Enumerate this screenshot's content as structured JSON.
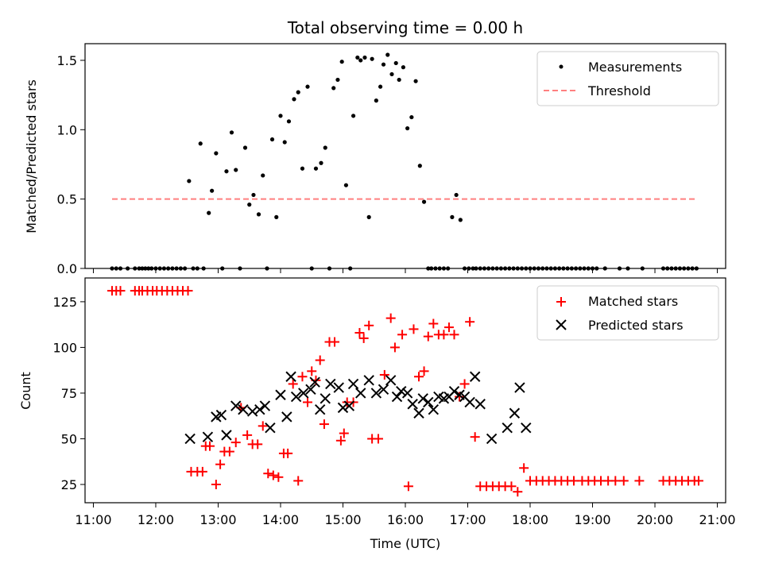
{
  "chart_data": [
    {
      "type": "scatter",
      "title": "Total observing time = 0.00 h",
      "xlabel": "",
      "ylabel": "Matched/Predicted stars",
      "xlim": [
        "11:00",
        "21:00"
      ],
      "ylim": [
        0,
        1.62
      ],
      "yticks": [
        0.0,
        0.5,
        1.0,
        1.5
      ],
      "ytick_labels": [
        "0.0",
        "0.5",
        "1.0",
        "1.5"
      ],
      "legend_position": "top-right",
      "series": [
        {
          "name": "Measurements",
          "color": "#000000",
          "x": [
            "11:18",
            "11:22",
            "11:26",
            "11:33",
            "11:40",
            "11:44",
            "11:47",
            "11:50",
            "11:53",
            "11:56",
            "12:00",
            "12:04",
            "12:08",
            "12:12",
            "12:16",
            "12:20",
            "12:24",
            "12:28",
            "12:32",
            "12:36",
            "12:40",
            "12:43",
            "12:46",
            "12:51",
            "12:54",
            "12:58",
            "13:04",
            "13:08",
            "13:13",
            "13:17",
            "13:21",
            "13:26",
            "13:30",
            "13:34",
            "13:39",
            "13:43",
            "13:47",
            "13:52",
            "13:56",
            "14:00",
            "14:04",
            "14:08",
            "14:13",
            "14:17",
            "14:21",
            "14:26",
            "14:30",
            "14:34",
            "14:39",
            "14:43",
            "14:47",
            "14:51",
            "14:55",
            "14:59",
            "15:03",
            "15:07",
            "15:10",
            "15:14",
            "15:17",
            "15:21",
            "15:25",
            "15:28",
            "15:32",
            "15:36",
            "15:39",
            "15:43",
            "15:47",
            "15:51",
            "15:54",
            "15:58",
            "16:02",
            "16:06",
            "16:10",
            "16:14",
            "16:18",
            "16:22",
            "16:25",
            "16:29",
            "16:33",
            "16:37",
            "16:41",
            "16:45",
            "16:49",
            "16:53",
            "16:57",
            "17:01",
            "17:05",
            "17:08",
            "17:12",
            "17:16",
            "17:20",
            "17:24",
            "17:28",
            "17:32",
            "17:36",
            "17:40",
            "17:44",
            "17:48",
            "17:52",
            "17:56",
            "18:00",
            "18:04",
            "18:08",
            "18:12",
            "18:16",
            "18:20",
            "18:24",
            "18:28",
            "18:32",
            "18:36",
            "18:40",
            "18:44",
            "18:48",
            "18:52",
            "18:56",
            "19:00",
            "19:04",
            "19:12",
            "19:26",
            "19:34",
            "19:48",
            "20:08",
            "20:12",
            "20:16",
            "20:20",
            "20:24",
            "20:28",
            "20:32",
            "20:36",
            "20:40"
          ],
          "y": [
            0.0,
            0.0,
            0.0,
            0.0,
            0.0,
            0.0,
            0.0,
            0.0,
            0.0,
            0.0,
            0.0,
            0.0,
            0.0,
            0.0,
            0.0,
            0.0,
            0.0,
            0.0,
            0.63,
            0.0,
            0.0,
            0.9,
            0.0,
            0.4,
            0.56,
            0.83,
            0.0,
            0.7,
            0.98,
            0.71,
            0.0,
            0.87,
            0.46,
            0.53,
            0.39,
            0.67,
            0.0,
            0.93,
            0.37,
            1.1,
            0.91,
            1.06,
            1.22,
            1.27,
            0.72,
            1.31,
            0.0,
            0.72,
            0.76,
            0.87,
            0.0,
            1.3,
            1.36,
            1.49,
            0.6,
            0.0,
            1.1,
            1.52,
            1.5,
            1.52,
            0.37,
            1.51,
            1.21,
            1.31,
            1.47,
            1.54,
            1.4,
            1.48,
            1.36,
            1.45,
            1.01,
            1.09,
            1.35,
            0.74,
            0.48,
            0.0,
            0.0,
            0.0,
            0.0,
            0.0,
            0.0,
            0.37,
            0.53,
            0.35,
            0.0,
            0.0,
            0.0,
            0.0,
            0.0,
            0.0,
            0.0,
            0.0,
            0.0,
            0.0,
            0.0,
            0.0,
            0.0,
            0.0,
            0.0,
            0.0,
            0.0,
            0.0,
            0.0,
            0.0,
            0.0,
            0.0,
            0.0,
            0.0,
            0.0,
            0.0,
            0.0,
            0.0,
            0.0,
            0.0,
            0.0,
            0.0,
            0.0,
            0.0,
            0.0,
            0.0,
            0.0,
            0.0,
            0.0,
            0.0,
            0.0,
            0.0,
            0.0,
            0.0,
            0.0,
            0.0
          ]
        },
        {
          "name": "Threshold",
          "color": "#ff7f7f",
          "x": [
            "11:18",
            "20:40"
          ],
          "y": [
            0.5,
            0.5
          ]
        }
      ]
    },
    {
      "type": "scatter",
      "title": "",
      "xlabel": "Time (UTC)",
      "ylabel": "Count",
      "xlim": [
        "11:00",
        "21:00"
      ],
      "ylim": [
        15,
        138
      ],
      "yticks": [
        25,
        50,
        75,
        100,
        125
      ],
      "ytick_labels": [
        "25",
        "50",
        "75",
        "100",
        "125"
      ],
      "xticks": [
        "11:00",
        "12:00",
        "13:00",
        "14:00",
        "15:00",
        "16:00",
        "17:00",
        "18:00",
        "19:00",
        "20:00",
        "21:00"
      ],
      "legend_position": "top-right",
      "series": [
        {
          "name": "Matched stars",
          "color": "#ff0000",
          "x": [
            "11:18",
            "11:22",
            "11:26",
            "11:40",
            "11:44",
            "11:47",
            "11:52",
            "11:57",
            "12:01",
            "12:06",
            "12:11",
            "12:16",
            "12:21",
            "12:26",
            "12:31",
            "12:34",
            "12:40",
            "12:45",
            "12:48",
            "12:52",
            "12:58",
            "13:02",
            "13:06",
            "13:11",
            "13:17",
            "13:22",
            "13:28",
            "13:33",
            "13:38",
            "13:43",
            "13:48",
            "13:53",
            "13:58",
            "14:03",
            "14:07",
            "14:12",
            "14:17",
            "14:21",
            "14:26",
            "14:30",
            "14:34",
            "14:38",
            "14:42",
            "14:47",
            "14:52",
            "14:58",
            "15:01",
            "15:04",
            "15:10",
            "15:16",
            "15:20",
            "15:25",
            "15:28",
            "15:34",
            "15:40",
            "15:46",
            "15:50",
            "15:57",
            "16:03",
            "16:08",
            "16:13",
            "16:18",
            "16:22",
            "16:27",
            "16:32",
            "16:37",
            "16:42",
            "16:47",
            "16:52",
            "16:57",
            "17:02",
            "17:07",
            "17:12",
            "17:18",
            "17:24",
            "17:30",
            "17:36",
            "17:42",
            "17:48",
            "17:54",
            "18:00",
            "18:06",
            "18:12",
            "18:18",
            "18:24",
            "18:30",
            "18:36",
            "18:42",
            "18:50",
            "18:56",
            "19:02",
            "19:08",
            "19:15",
            "19:22",
            "19:30",
            "19:45",
            "20:08",
            "20:14",
            "20:20",
            "20:26",
            "20:32",
            "20:38",
            "20:42"
          ],
          "y": [
            131,
            131,
            131,
            131,
            131,
            131,
            131,
            131,
            131,
            131,
            131,
            131,
            131,
            131,
            131,
            32,
            32,
            32,
            46,
            46,
            25,
            36,
            43,
            43,
            48,
            67,
            52,
            47,
            47,
            57,
            31,
            30,
            29,
            42,
            42,
            80,
            27,
            84,
            70,
            87,
            82,
            93,
            58,
            103,
            103,
            49,
            53,
            70,
            70,
            108,
            105,
            112,
            50,
            50,
            85,
            116,
            100,
            107,
            24,
            110,
            84,
            87,
            106,
            113,
            107,
            107,
            111,
            107,
            73,
            80,
            114,
            51,
            24,
            24,
            24,
            24,
            24,
            24,
            21,
            34,
            27,
            27,
            27,
            27,
            27,
            27,
            27,
            27,
            27,
            27,
            27,
            27,
            27,
            27,
            27,
            27,
            27,
            27,
            27,
            27,
            27,
            27,
            27
          ]
        },
        {
          "name": "Predicted stars",
          "color": "#000000",
          "x": [
            "12:33",
            "12:50",
            "12:58",
            "13:03",
            "13:08",
            "13:17",
            "13:24",
            "13:33",
            "13:40",
            "13:45",
            "13:50",
            "14:00",
            "14:06",
            "14:10",
            "14:15",
            "14:22",
            "14:29",
            "14:33",
            "14:38",
            "14:43",
            "14:48",
            "14:56",
            "15:00",
            "15:06",
            "15:10",
            "15:17",
            "15:25",
            "15:32",
            "15:39",
            "15:46",
            "15:52",
            "15:56",
            "16:02",
            "16:07",
            "16:13",
            "16:17",
            "16:22",
            "16:27",
            "16:32",
            "16:37",
            "16:42",
            "16:47",
            "16:52",
            "16:57",
            "17:02",
            "17:07",
            "17:12",
            "17:23",
            "17:38",
            "17:45",
            "17:50",
            "17:56"
          ],
          "y": [
            50,
            51,
            62,
            63,
            52,
            68,
            66,
            65,
            66,
            68,
            56,
            74,
            62,
            84,
            73,
            75,
            77,
            81,
            66,
            72,
            80,
            78,
            67,
            68,
            80,
            75,
            82,
            75,
            77,
            82,
            73,
            76,
            75,
            69,
            64,
            72,
            70,
            66,
            73,
            72,
            73,
            76,
            74,
            73,
            70,
            84,
            69,
            50,
            56,
            64,
            78,
            56
          ]
        }
      ]
    }
  ],
  "legends": {
    "top": [
      "Measurements",
      "Threshold"
    ],
    "bottom": [
      "Matched stars",
      "Predicted stars"
    ]
  }
}
